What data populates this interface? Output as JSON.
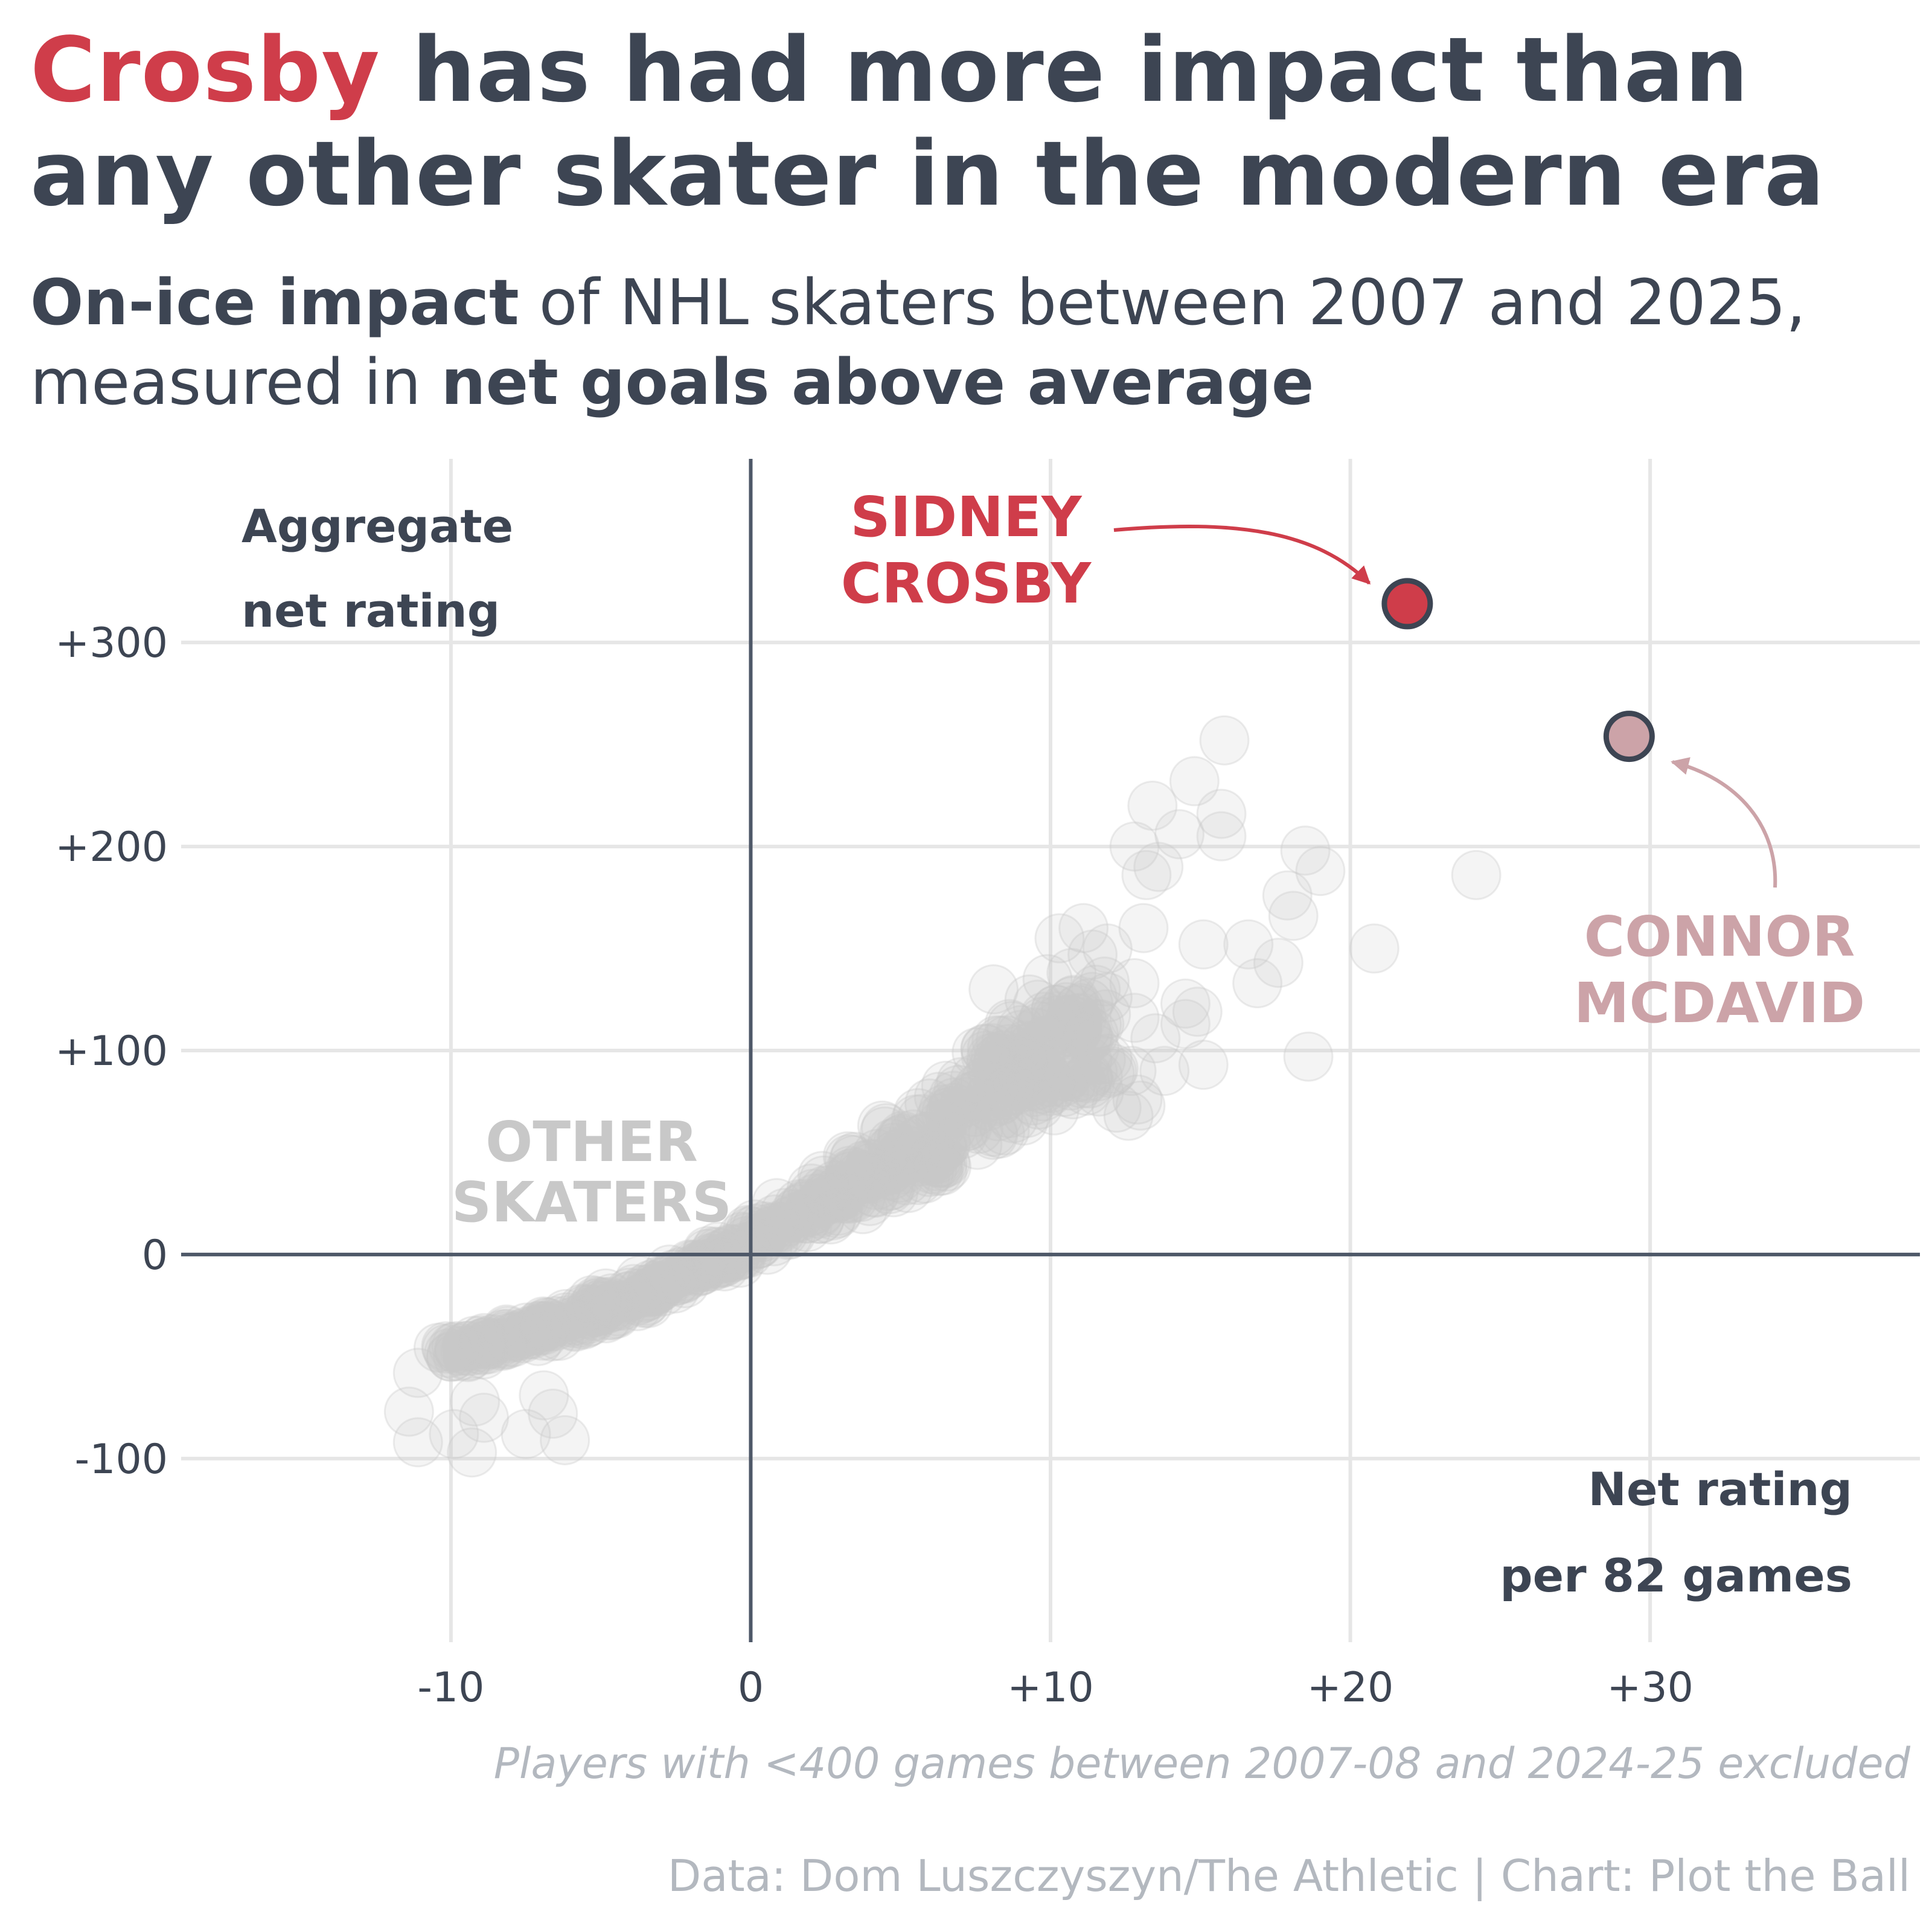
{
  "title": {
    "highlight": "Crosby",
    "rest": " has had more impact than any other skater in the modern era"
  },
  "subtitle": {
    "bold1": "On-ice impact",
    "mid": " of NHL skaters between 2007 and 2025, measured in ",
    "bold2": "net goals above average"
  },
  "note": "Players with <400 games between 2007-08 and 2024-25 excluded",
  "credit": "Data: Dom Luszczyszyn/The Athletic | Chart: Plot the Ball",
  "colors": {
    "text": "#3d4553",
    "crosby": "#cf3d4a",
    "mcdavid": "#cca3a8",
    "others": "#c8c8c8",
    "grid": "#e6e6e6",
    "axis": "#4e5868",
    "footer": "#b3b8bf"
  },
  "chart_data": {
    "type": "scatter",
    "xlabel": "Net rating per 82 games",
    "ylabel": "Aggregate net rating",
    "xlim": [
      -19,
      39
    ],
    "ylim": [
      -190,
      390
    ],
    "x_ticks": [
      {
        "value": -10,
        "label": "-10"
      },
      {
        "value": 0,
        "label": "0"
      },
      {
        "value": 10,
        "label": "+10"
      },
      {
        "value": 20,
        "label": "+20"
      },
      {
        "value": 30,
        "label": "+30"
      }
    ],
    "y_ticks": [
      {
        "value": -100,
        "label": "-100"
      },
      {
        "value": 0,
        "label": "0"
      },
      {
        "value": 100,
        "label": "+100"
      },
      {
        "value": 200,
        "label": "+200"
      },
      {
        "value": 300,
        "label": "+300"
      }
    ],
    "grid": true,
    "highlights": [
      {
        "name": "SIDNEY CROSBY",
        "label_lines": [
          "SIDNEY",
          "CROSBY"
        ],
        "x": 21.9,
        "y": 319
      },
      {
        "name": "CONNOR MCDAVID",
        "label_lines": [
          "CONNOR",
          "MCDAVID"
        ],
        "x": 29.3,
        "y": 254
      }
    ],
    "others_label_lines": [
      "OTHER",
      "SKATERS"
    ],
    "others_outliers": [
      [
        15.8,
        252
      ],
      [
        14.8,
        232
      ],
      [
        13.4,
        220
      ],
      [
        15.7,
        216
      ],
      [
        14.3,
        206
      ],
      [
        15.7,
        205
      ],
      [
        12.8,
        200
      ],
      [
        13.2,
        186
      ],
      [
        13.6,
        190
      ],
      [
        18.5,
        198
      ],
      [
        19.0,
        188
      ],
      [
        24.2,
        186
      ],
      [
        17.9,
        176
      ],
      [
        18.1,
        166
      ],
      [
        16.6,
        152
      ],
      [
        20.8,
        150
      ],
      [
        15.1,
        152
      ],
      [
        13.1,
        160
      ],
      [
        17.6,
        143
      ],
      [
        16.9,
        133
      ],
      [
        10.3,
        155
      ],
      [
        11.1,
        160
      ],
      [
        11.4,
        147
      ],
      [
        11.9,
        150
      ],
      [
        12.8,
        133
      ],
      [
        14.5,
        123
      ],
      [
        14.9,
        119
      ],
      [
        13.5,
        106
      ],
      [
        14.5,
        113
      ],
      [
        12.8,
        116
      ],
      [
        12.7,
        90
      ],
      [
        13.8,
        90
      ],
      [
        15.1,
        93
      ],
      [
        18.6,
        97
      ],
      [
        12.9,
        76
      ],
      [
        12.2,
        72
      ],
      [
        12.6,
        68
      ],
      [
        13.0,
        73
      ],
      [
        11.9,
        96
      ],
      [
        10.8,
        108
      ],
      [
        9.3,
        125
      ],
      [
        8.1,
        130
      ],
      [
        8.7,
        112
      ],
      [
        8.2,
        105
      ],
      [
        9.9,
        135
      ],
      [
        10.7,
        138
      ],
      [
        10.9,
        120
      ],
      [
        -9.2,
        -72
      ],
      [
        -8.9,
        -80
      ],
      [
        -11.1,
        -58
      ],
      [
        -11.4,
        -77
      ],
      [
        -11.1,
        -92
      ],
      [
        -9.9,
        -88
      ],
      [
        -9.3,
        -97
      ],
      [
        -7.5,
        -88
      ],
      [
        -6.2,
        -91
      ],
      [
        -6.9,
        -69
      ],
      [
        -6.6,
        -78
      ]
    ],
    "others_trend": {
      "note": "dense band of other skaters along the main trend",
      "points": [
        [
          -10,
          -48
        ],
        [
          -8,
          -41
        ],
        [
          -6,
          -33
        ],
        [
          -4,
          -22
        ],
        [
          -2,
          -8
        ],
        [
          0,
          5
        ],
        [
          2,
          23
        ],
        [
          4,
          40
        ],
        [
          6,
          59
        ],
        [
          8,
          80
        ],
        [
          10,
          98
        ],
        [
          12,
          112
        ]
      ]
    }
  }
}
